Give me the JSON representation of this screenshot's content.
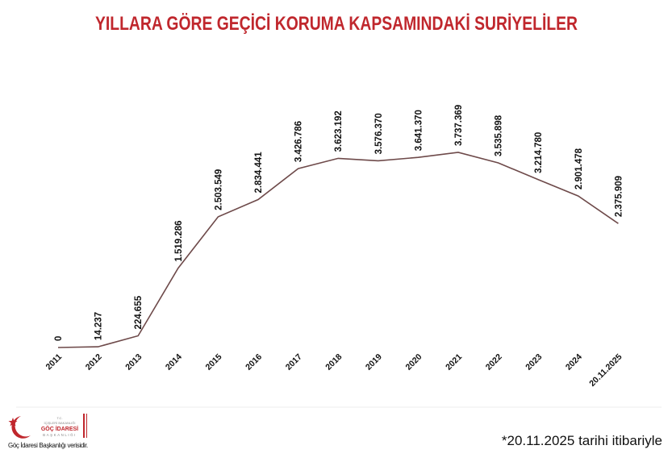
{
  "chart_data": {
    "type": "line",
    "title": "YILLARA GÖRE GEÇİCİ KORUMA KAPSAMINDAKİ SURİYELİLER",
    "categories": [
      "2011",
      "2012",
      "2013",
      "2014",
      "2015",
      "2016",
      "2017",
      "2018",
      "2019",
      "2020",
      "2021",
      "2022",
      "2023",
      "2024",
      "20.11.2025"
    ],
    "values": [
      0,
      14237,
      224655,
      1519286,
      2503549,
      2834441,
      3426786,
      3623192,
      3576370,
      3641370,
      3737369,
      3535898,
      3214780,
      2901478,
      2375909
    ],
    "data_labels": [
      "0",
      "14.237",
      "224.655",
      "1.519.286",
      "2.503.549",
      "2.834.441",
      "3.426.786",
      "3.623.192",
      "3.576.370",
      "3.641.370",
      "3.737.369",
      "3.535.898",
      "3.214.780",
      "2.901.478",
      "2.375.909"
    ],
    "xlabel": "",
    "ylabel": "",
    "ylim": [
      0,
      3737369
    ],
    "grid": false,
    "legend": "none",
    "line_color": "#6e4a4a",
    "title_color": "#c0272d"
  },
  "footnote": "*20.11.2025 tarihi itibariyle",
  "logo": {
    "text_lines": [
      "T.C.",
      "İÇİŞLERİ BAKANLIĞI",
      "GÖÇ İDARESİ",
      "BAŞKANLIĞI"
    ],
    "caption": "Göç İdaresi Başkanlığı verisidir."
  }
}
